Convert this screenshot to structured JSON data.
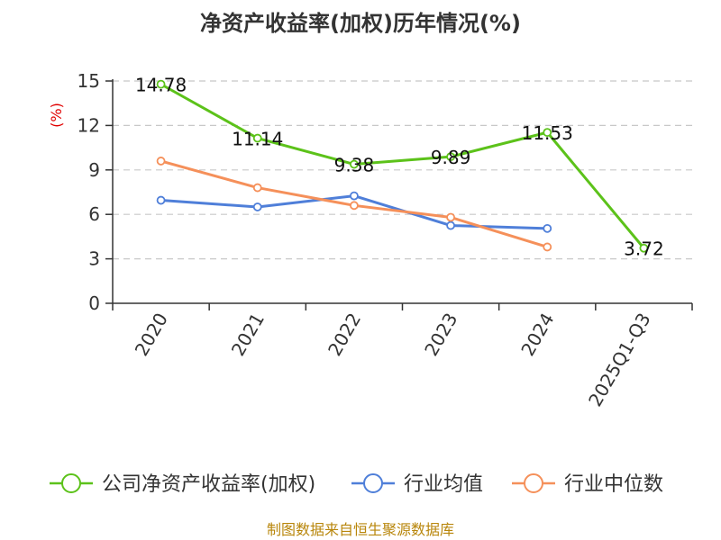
{
  "chart_data": {
    "type": "line",
    "title": "净资产收益率(加权)历年情况(%)",
    "ylabel": "(%)",
    "xlabel": "",
    "categories": [
      "2020",
      "2021",
      "2022",
      "2023",
      "2024",
      "2025Q1-Q3"
    ],
    "ylim": [
      0,
      15
    ],
    "yticks": [
      0,
      3,
      6,
      9,
      12,
      15
    ],
    "grid": true,
    "legend_position": "bottom",
    "series": [
      {
        "name": "公司净资产收益率(加权)",
        "color": "#5cc21a",
        "values": [
          14.78,
          11.14,
          9.38,
          9.89,
          11.53,
          3.72
        ],
        "show_labels": true
      },
      {
        "name": "行业均值",
        "color": "#4f7fd9",
        "values": [
          6.95,
          6.5,
          7.25,
          5.25,
          5.05,
          null
        ],
        "show_labels": false
      },
      {
        "name": "行业中位数",
        "color": "#f5905a",
        "values": [
          9.6,
          7.8,
          6.6,
          5.8,
          3.8,
          null
        ],
        "show_labels": false
      }
    ],
    "data_labels": [
      "14.78",
      "11.14",
      "9.38",
      "9.89",
      "11.53",
      "3.72"
    ],
    "source": "制图数据来自恒生聚源数据库"
  }
}
